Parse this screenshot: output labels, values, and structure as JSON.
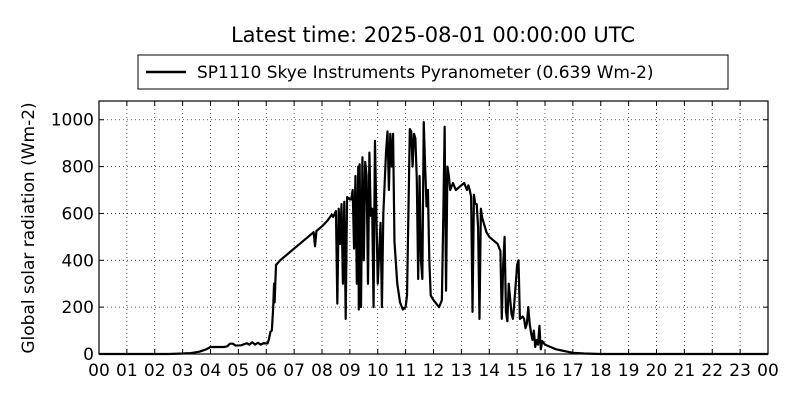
{
  "chart_data": {
    "type": "line",
    "title": "Latest time: 2025-08-01 00:00:00 UTC",
    "ylabel": "Global solar radiation (Wm-2)",
    "xlabel": "",
    "xlim": [
      0,
      24
    ],
    "ylim": [
      0,
      1080
    ],
    "x_ticks": [
      "00",
      "01",
      "02",
      "03",
      "04",
      "05",
      "06",
      "07",
      "08",
      "09",
      "10",
      "11",
      "12",
      "13",
      "14",
      "15",
      "16",
      "17",
      "18",
      "19",
      "20",
      "21",
      "22",
      "23",
      "00"
    ],
    "y_ticks": [
      0,
      200,
      400,
      600,
      800,
      1000
    ],
    "grid": true,
    "legend_position": "top-center",
    "series": [
      {
        "name": "SP1110 Skye Instruments Pyranometer (0.639 Wm-2)",
        "color": "#000000",
        "points": [
          [
            0,
            0
          ],
          [
            2.5,
            0
          ],
          [
            3.0,
            2
          ],
          [
            3.3,
            4
          ],
          [
            3.6,
            10
          ],
          [
            3.85,
            20
          ],
          [
            4.0,
            30
          ],
          [
            4.2,
            30
          ],
          [
            4.5,
            30
          ],
          [
            4.6,
            33
          ],
          [
            4.7,
            44
          ],
          [
            4.8,
            44
          ],
          [
            4.9,
            36
          ],
          [
            5.1,
            37
          ],
          [
            5.3,
            46
          ],
          [
            5.4,
            40
          ],
          [
            5.5,
            50
          ],
          [
            5.6,
            40
          ],
          [
            5.7,
            48
          ],
          [
            5.8,
            40
          ],
          [
            5.9,
            46
          ],
          [
            6.05,
            45
          ],
          [
            6.1,
            65
          ],
          [
            6.15,
            95
          ],
          [
            6.2,
            100
          ],
          [
            6.25,
            200
          ],
          [
            6.28,
            300
          ],
          [
            6.3,
            220
          ],
          [
            6.35,
            380
          ],
          [
            6.5,
            400
          ],
          [
            6.8,
            430
          ],
          [
            7.0,
            450
          ],
          [
            7.3,
            480
          ],
          [
            7.6,
            510
          ],
          [
            7.7,
            520
          ],
          [
            7.75,
            460
          ],
          [
            7.8,
            525
          ],
          [
            8.0,
            545
          ],
          [
            8.2,
            570
          ],
          [
            8.35,
            595
          ],
          [
            8.4,
            585
          ],
          [
            8.5,
            610
          ],
          [
            8.55,
            215
          ],
          [
            8.6,
            620
          ],
          [
            8.65,
            470
          ],
          [
            8.7,
            640
          ],
          [
            8.75,
            300
          ],
          [
            8.8,
            650
          ],
          [
            8.85,
            150
          ],
          [
            8.9,
            670
          ],
          [
            9.0,
            660
          ],
          [
            9.05,
            660
          ],
          [
            9.1,
            700
          ],
          [
            9.15,
            450
          ],
          [
            9.2,
            760
          ],
          [
            9.25,
            300
          ],
          [
            9.3,
            800
          ],
          [
            9.32,
            190
          ],
          [
            9.35,
            810
          ],
          [
            9.4,
            200
          ],
          [
            9.45,
            840
          ],
          [
            9.5,
            400
          ],
          [
            9.55,
            820
          ],
          [
            9.6,
            760
          ],
          [
            9.65,
            300
          ],
          [
            9.7,
            860
          ],
          [
            9.75,
            590
          ],
          [
            9.8,
            620
          ],
          [
            9.85,
            200
          ],
          [
            9.9,
            910
          ],
          [
            9.95,
            600
          ],
          [
            10.0,
            300
          ],
          [
            10.1,
            560
          ],
          [
            10.15,
            200
          ],
          [
            10.2,
            600
          ],
          [
            10.3,
            870
          ],
          [
            10.35,
            950
          ],
          [
            10.4,
            700
          ],
          [
            10.45,
            940
          ],
          [
            10.5,
            800
          ],
          [
            10.55,
            940
          ],
          [
            10.6,
            480
          ],
          [
            10.7,
            300
          ],
          [
            10.8,
            220
          ],
          [
            10.9,
            190
          ],
          [
            11.0,
            200
          ],
          [
            11.05,
            250
          ],
          [
            11.1,
            600
          ],
          [
            11.15,
            960
          ],
          [
            11.2,
            950
          ],
          [
            11.25,
            800
          ],
          [
            11.3,
            940
          ],
          [
            11.35,
            920
          ],
          [
            11.4,
            750
          ],
          [
            11.45,
            320
          ],
          [
            11.5,
            760
          ],
          [
            11.55,
            400
          ],
          [
            11.6,
            320
          ],
          [
            11.65,
            990
          ],
          [
            11.7,
            800
          ],
          [
            11.75,
            630
          ],
          [
            11.8,
            700
          ],
          [
            11.85,
            400
          ],
          [
            11.9,
            250
          ],
          [
            12.0,
            230
          ],
          [
            12.2,
            200
          ],
          [
            12.3,
            230
          ],
          [
            12.35,
            580
          ],
          [
            12.4,
            970
          ],
          [
            12.45,
            270
          ],
          [
            12.5,
            800
          ],
          [
            12.55,
            760
          ],
          [
            12.6,
            700
          ],
          [
            12.7,
            730
          ],
          [
            12.8,
            700
          ],
          [
            12.9,
            710
          ],
          [
            13.0,
            720
          ],
          [
            13.1,
            730
          ],
          [
            13.2,
            700
          ],
          [
            13.25,
            720
          ],
          [
            13.3,
            700
          ],
          [
            13.35,
            670
          ],
          [
            13.4,
            180
          ],
          [
            13.45,
            680
          ],
          [
            13.5,
            640
          ],
          [
            13.55,
            640
          ],
          [
            13.6,
            540
          ],
          [
            13.65,
            150
          ],
          [
            13.7,
            620
          ],
          [
            13.75,
            580
          ],
          [
            13.8,
            560
          ],
          [
            13.9,
            520
          ],
          [
            14.0,
            500
          ],
          [
            14.1,
            490
          ],
          [
            14.2,
            480
          ],
          [
            14.3,
            470
          ],
          [
            14.4,
            440
          ],
          [
            14.45,
            150
          ],
          [
            14.5,
            380
          ],
          [
            14.55,
            500
          ],
          [
            14.6,
            180
          ],
          [
            14.65,
            140
          ],
          [
            14.7,
            300
          ],
          [
            14.8,
            170
          ],
          [
            14.85,
            150
          ],
          [
            14.9,
            220
          ],
          [
            15.0,
            380
          ],
          [
            15.05,
            400
          ],
          [
            15.1,
            150
          ],
          [
            15.2,
            160
          ],
          [
            15.25,
            150
          ],
          [
            15.3,
            110
          ],
          [
            15.35,
            130
          ],
          [
            15.4,
            200
          ],
          [
            15.45,
            130
          ],
          [
            15.5,
            90
          ],
          [
            15.55,
            60
          ],
          [
            15.6,
            100
          ],
          [
            15.65,
            30
          ],
          [
            15.7,
            60
          ],
          [
            15.75,
            40
          ],
          [
            15.8,
            120
          ],
          [
            15.85,
            20
          ],
          [
            15.9,
            55
          ],
          [
            16.0,
            40
          ],
          [
            16.2,
            30
          ],
          [
            16.4,
            20
          ],
          [
            16.6,
            15
          ],
          [
            16.8,
            10
          ],
          [
            17.0,
            5
          ],
          [
            17.4,
            2
          ],
          [
            18.0,
            0
          ],
          [
            24,
            0
          ]
        ]
      }
    ]
  }
}
